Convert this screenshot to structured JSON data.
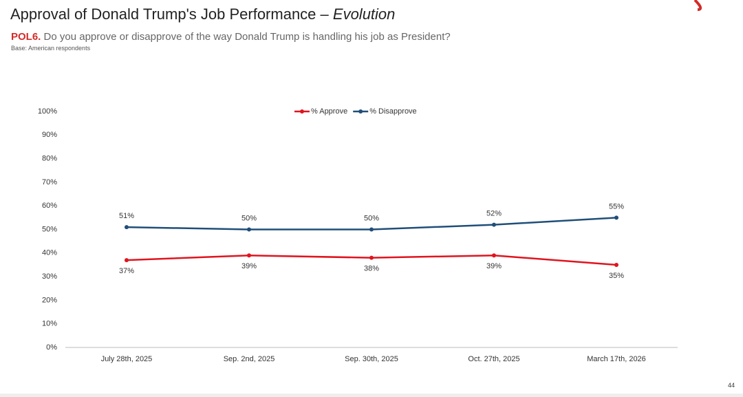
{
  "slide": {
    "title": "Approval of Donald Trump's Job Performance –",
    "title_emphasis": "Evolution",
    "question_code": "POL6.",
    "question": "Do you approve or disapprove of the way Donald Trump is handling his job as President?",
    "base": "Base: American respondents",
    "page_number": "44"
  },
  "chart_data": {
    "type": "line",
    "categories": [
      "July 28th, 2025",
      "Sep. 2nd, 2025",
      "Sep. 30th, 2025",
      "Oct. 27th, 2025",
      "March 17th, 2026"
    ],
    "series": [
      {
        "name": "% Approve",
        "color": "#e0141e",
        "values": [
          37,
          39,
          38,
          39,
          35
        ],
        "value_labels": [
          "37%",
          "39%",
          "38%",
          "39%",
          "35%"
        ]
      },
      {
        "name": "% Disapprove",
        "color": "#1f4e79",
        "values": [
          51,
          50,
          50,
          52,
          55
        ],
        "value_labels": [
          "51%",
          "50%",
          "50%",
          "52%",
          "55%"
        ]
      }
    ],
    "ylim": [
      0,
      100
    ],
    "yticks": [
      {
        "value": 0,
        "label": "0%"
      },
      {
        "value": 10,
        "label": "10%"
      },
      {
        "value": 20,
        "label": "20%"
      },
      {
        "value": 30,
        "label": "30%"
      },
      {
        "value": 40,
        "label": "40%"
      },
      {
        "value": 50,
        "label": "50%"
      },
      {
        "value": 60,
        "label": "60%"
      },
      {
        "value": 70,
        "label": "70%"
      },
      {
        "value": 80,
        "label": "80%"
      },
      {
        "value": 90,
        "label": "90%"
      },
      {
        "value": 100,
        "label": "100%"
      }
    ]
  }
}
